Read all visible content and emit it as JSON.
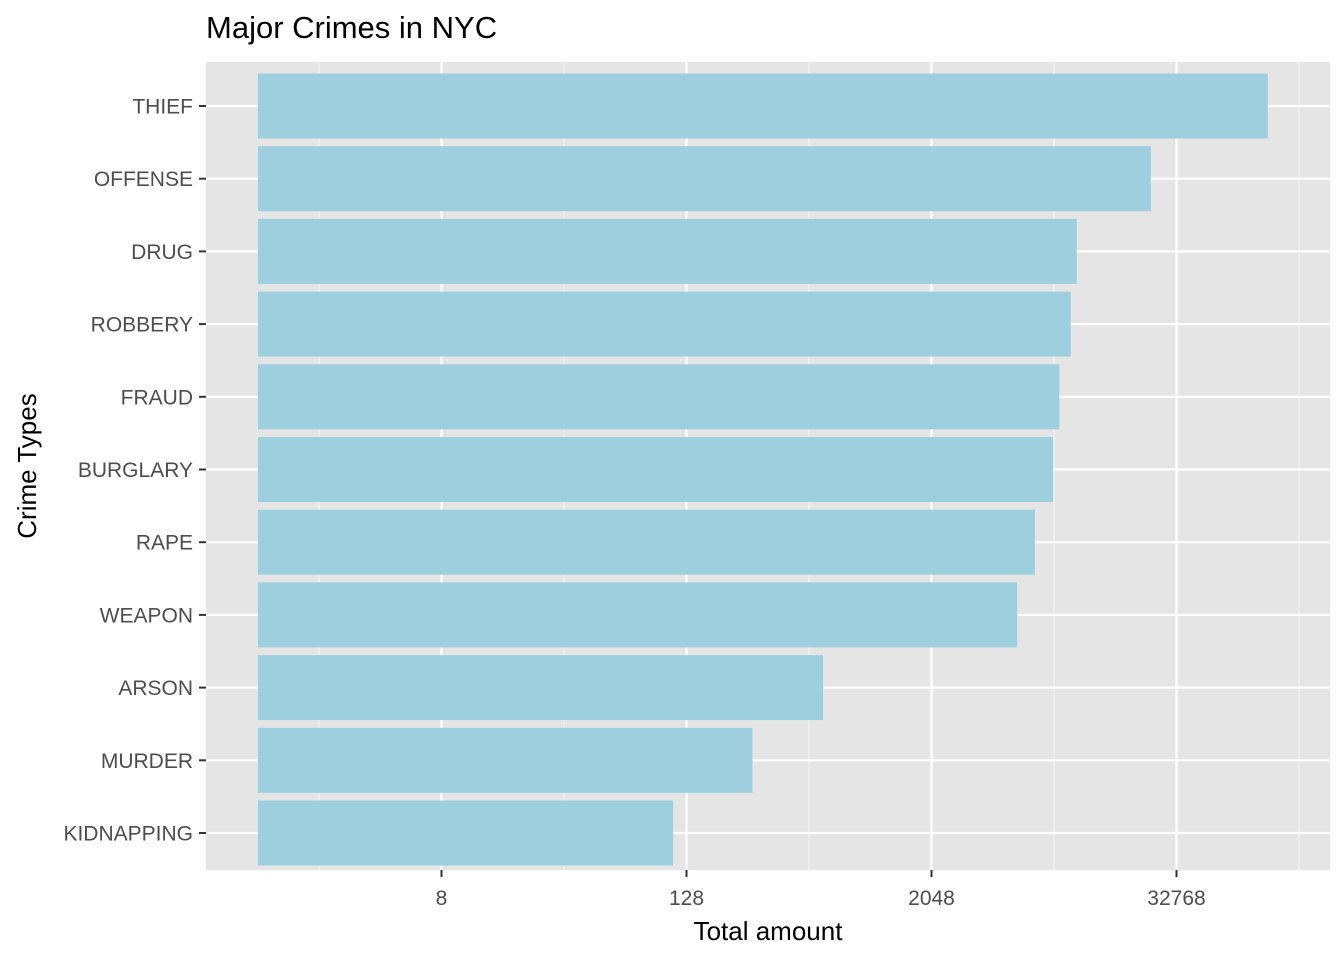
{
  "chart_data": {
    "type": "bar",
    "orientation": "horizontal",
    "title": "Major Crimes in NYC",
    "xlabel": "Total amount",
    "ylabel": "Crime Types",
    "x_scale": "log2",
    "x_ticks": [
      8,
      128,
      2048,
      32768
    ],
    "categories": [
      "THIEF",
      "OFFENSE",
      "DRUG",
      "ROBBERY",
      "FRAUD",
      "BURGLARY",
      "RAPE",
      "WEAPON",
      "ARSON",
      "MURDER",
      "KIDNAPPING"
    ],
    "values": [
      92000,
      24500,
      10600,
      9900,
      8700,
      8100,
      6600,
      5400,
      600,
      270,
      110
    ],
    "bar_color": "#9ecfdf",
    "panel_color": "#e5e5e5",
    "grid": true,
    "legend": "none"
  }
}
